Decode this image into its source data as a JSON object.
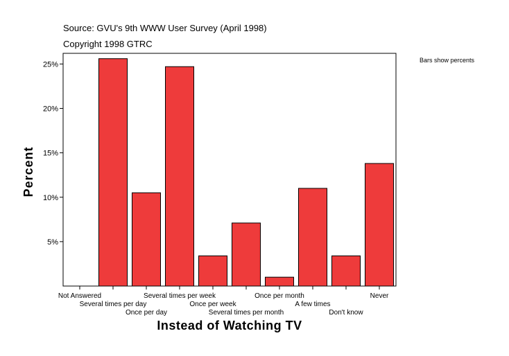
{
  "header": {
    "source": "Source: GVU's 9th WWW User Survey (April 1998)",
    "copyright": "Copyright 1998 GTRC"
  },
  "legend_note": "Bars show percents",
  "chart_data": {
    "type": "bar",
    "xlabel": "Instead of Watching TV",
    "ylabel": "Percent",
    "categories": [
      "Not Answered",
      "Several times per day",
      "Once per day",
      "Several times per week",
      "Once per week",
      "Several times per month",
      "Once per month",
      "A few times",
      "Don't know",
      "Never"
    ],
    "values": [
      0.0,
      25.6,
      10.5,
      24.7,
      3.4,
      7.1,
      1.0,
      11.0,
      3.4,
      13.8
    ],
    "ylim": [
      0,
      26.2
    ],
    "yticks": [
      5,
      10,
      15,
      20,
      25
    ],
    "ytick_labels": [
      "5%",
      "10%",
      "15%",
      "20%",
      "25%"
    ],
    "bar_color": "#ee3b3b",
    "grid": false
  }
}
